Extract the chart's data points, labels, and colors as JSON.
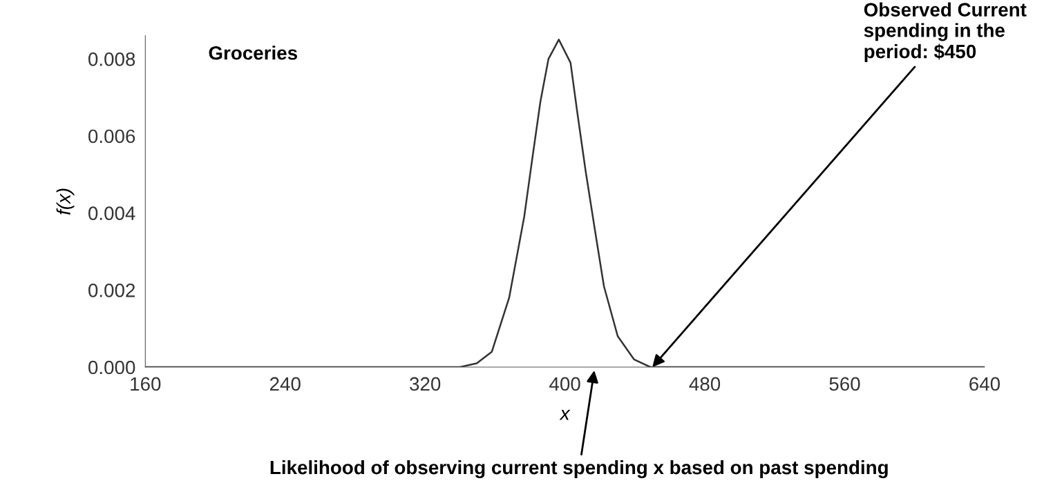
{
  "chart_data": {
    "type": "line",
    "title": "Groceries",
    "xlabel": "x",
    "ylabel": "f(x)",
    "x": [
      160,
      240,
      320,
      340,
      349.6,
      358.2,
      368.1,
      376.7,
      381.3,
      386.0,
      390.6,
      396.5,
      403.2,
      407.1,
      411.8,
      417.0,
      422.3,
      430.2,
      439.5,
      448.8,
      480,
      560,
      640
    ],
    "series": [
      {
        "color": "#333333",
        "values": [
          0,
          0,
          0,
          0,
          0.0001,
          0.0004,
          0.0018,
          0.0039,
          0.0054,
          0.0069,
          0.008,
          0.0085,
          0.0079,
          0.0066,
          0.0051,
          0.0036,
          0.0021,
          0.0008,
          0.0002,
          0,
          0,
          0,
          0
        ]
      }
    ],
    "xlim": [
      160,
      640
    ],
    "xticks": [
      160,
      240,
      320,
      400,
      480,
      560,
      640
    ],
    "ylim": [
      0,
      0.0086
    ],
    "yticks": [
      {
        "value": 0,
        "label": "0.000"
      },
      {
        "value": 0.002,
        "label": "0.002"
      },
      {
        "value": 0.004,
        "label": "0.004"
      },
      {
        "value": 0.006,
        "label": "0.006"
      },
      {
        "value": 0.008,
        "label": "0.008"
      }
    ],
    "grid": false,
    "legend": false,
    "marker": "none",
    "line_style": "solid",
    "annotations": [
      {
        "text": "Observed Current\nspending in the\nperiod: $450",
        "x": 450,
        "y": 0
      },
      "Likelihood of observing current spending x based on past spending"
    ]
  }
}
